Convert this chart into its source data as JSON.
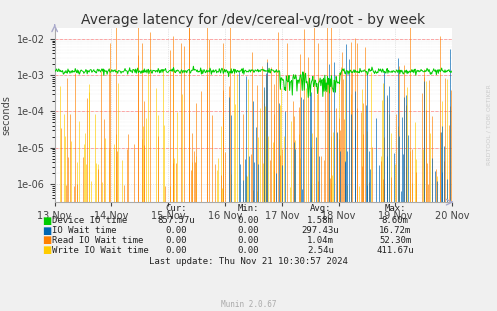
{
  "title": "Average latency for /dev/cereal-vg/root - by week",
  "ylabel": "seconds",
  "background_color": "#f0f0f0",
  "plot_bg_color": "#ffffff",
  "ylim_log_min": -6.5,
  "ylim_log_max": -1.7,
  "x_ticks_labels": [
    "13 Nov",
    "14 Nov",
    "15 Nov",
    "16 Nov",
    "17 Nov",
    "18 Nov",
    "19 Nov",
    "20 Nov"
  ],
  "legend_entries": [
    {
      "label": "Device IO time",
      "color": "#00cc00"
    },
    {
      "label": "IO Wait time",
      "color": "#0066b3"
    },
    {
      "label": "Read IO Wait time",
      "color": "#ff8000"
    },
    {
      "label": "Write IO Wait time",
      "color": "#ffcc00"
    }
  ],
  "table_headers": [
    "Cur:",
    "Min:",
    "Avg:",
    "Max:"
  ],
  "table_rows": [
    [
      "Device IO time",
      "857.57u",
      "0.00",
      "1.58m",
      "8.60m"
    ],
    [
      "IO Wait time",
      "0.00",
      "0.00",
      "297.43u",
      "16.72m"
    ],
    [
      "Read IO Wait time",
      "0.00",
      "0.00",
      "1.04m",
      "52.30m"
    ],
    [
      "Write IO Wait time",
      "0.00",
      "0.00",
      "2.54u",
      "411.67u"
    ]
  ],
  "footer": "Last update: Thu Nov 21 10:30:57 2024",
  "munin_version": "Munin 2.0.67",
  "watermark": "RRDTOOL / TOBI OETIKER",
  "title_fontsize": 10,
  "axis_fontsize": 7,
  "legend_fontsize": 6.5,
  "table_fontsize": 6.5,
  "seed": 42,
  "n_points": 600
}
